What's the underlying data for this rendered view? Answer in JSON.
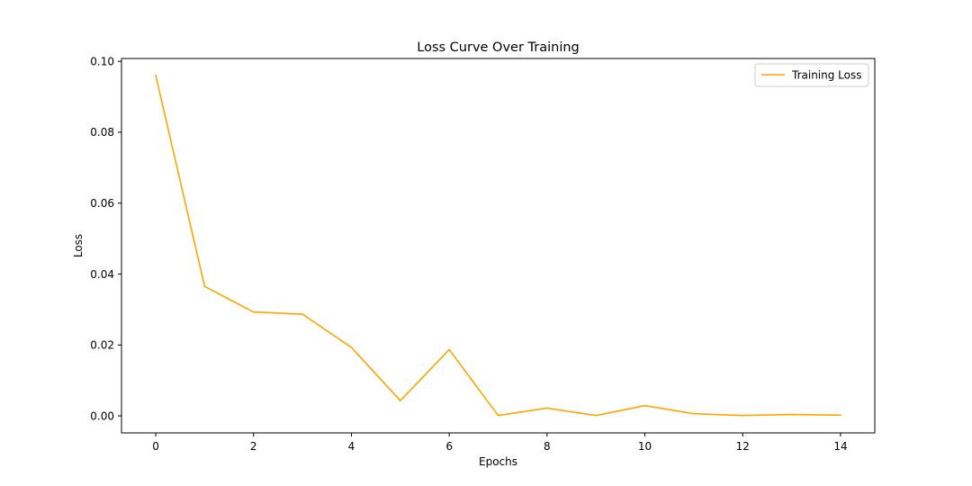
{
  "chart_data": {
    "type": "line",
    "title": "Loss Curve Over Training",
    "xlabel": "Epochs",
    "ylabel": "Loss",
    "xlim": [
      -0.7,
      14.7
    ],
    "ylim": [
      -0.0048,
      0.1008
    ],
    "xticks": [
      0,
      2,
      4,
      6,
      8,
      10,
      12,
      14
    ],
    "xtick_labels": [
      "0",
      "2",
      "4",
      "6",
      "8",
      "10",
      "12",
      "14"
    ],
    "yticks": [
      0.0,
      0.02,
      0.04,
      0.06,
      0.08,
      0.1
    ],
    "ytick_labels": [
      "0.00",
      "0.02",
      "0.04",
      "0.06",
      "0.08",
      "0.10"
    ],
    "grid": false,
    "legend_position": "top-right",
    "series": [
      {
        "name": "Training Loss",
        "color": "#ffa500",
        "x": [
          0,
          1,
          2,
          3,
          4,
          5,
          6,
          7,
          8,
          9,
          10,
          11,
          12,
          13,
          14
        ],
        "values": [
          0.096,
          0.0365,
          0.0293,
          0.0287,
          0.0193,
          0.0043,
          0.0187,
          0.0001,
          0.0022,
          0.0001,
          0.0029,
          0.0006,
          0.0001,
          0.0004,
          0.0002
        ]
      }
    ]
  }
}
